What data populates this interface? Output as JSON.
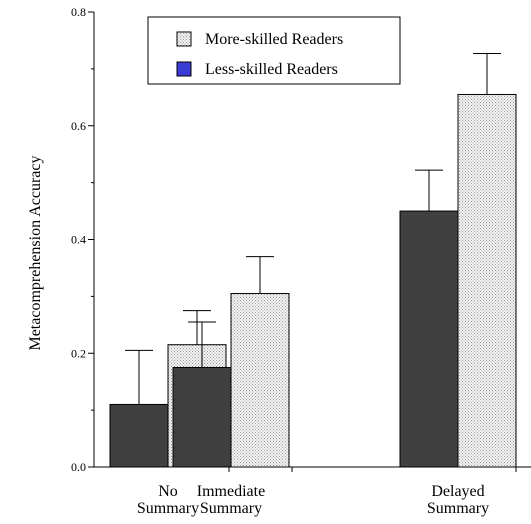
{
  "chart_data": {
    "type": "bar",
    "ylabel": "Metacomprehension Accuracy",
    "ylim": [
      0,
      0.8
    ],
    "yticks": [
      "0.0",
      "0.2",
      "0.4",
      "0.6",
      "0.8"
    ],
    "categories": [
      [
        "No",
        "Summary"
      ],
      [
        "Immediate",
        "Summary"
      ],
      [
        "Delayed",
        "Summary"
      ]
    ],
    "series": [
      {
        "name": "Less-skilled Readers",
        "values": [
          0.11,
          0.175,
          0.45
        ],
        "errors": [
          0.095,
          0.08,
          0.072
        ],
        "fill": "#404040",
        "legend_swatch": "#3b3bd6"
      },
      {
        "name": "More-skilled Readers",
        "values": [
          0.215,
          0.305,
          0.655
        ],
        "errors": [
          0.06,
          0.065,
          0.072
        ],
        "fill": "#dcdcdc"
      }
    ],
    "legend": {
      "placement": "top-left",
      "order": [
        1,
        0
      ]
    },
    "grid": false
  }
}
